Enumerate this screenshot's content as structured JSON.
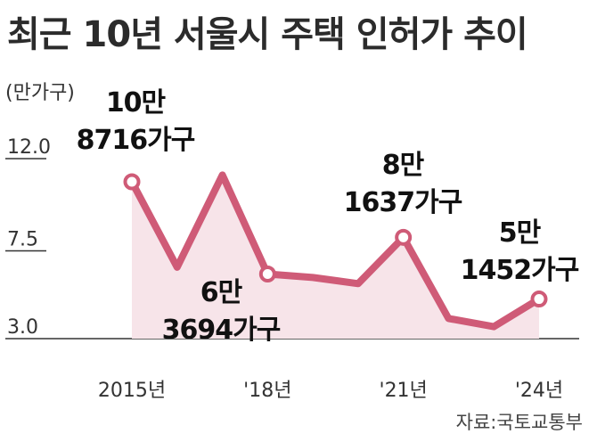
{
  "title": "최근 10년 서울시 주택 인허가 추이",
  "unit": "(만가구)",
  "source": "자료:국토교통부",
  "colors": {
    "line": "#cf5b77",
    "area": "#f7e4e9",
    "axis": "#333333",
    "marker_fill": "#ffffff"
  },
  "chart_data": {
    "type": "area",
    "title": "최근 10년 서울시 주택 인허가 추이",
    "ylabel": "(만가구)",
    "ylim": [
      3.0,
      12.0
    ],
    "yticks": [
      "12.0",
      "7.5",
      "3.0"
    ],
    "ytick_values": [
      12.0,
      7.5,
      3.0
    ],
    "x": [
      2015,
      2016,
      2017,
      2018,
      2019,
      2020,
      2021,
      2022,
      2023,
      2024
    ],
    "xtick_values": [
      2015,
      2018,
      2021,
      2024
    ],
    "xticks": [
      "2015년",
      "'18년",
      "'21년",
      "'24년"
    ],
    "series": [
      {
        "values": [
          10.87,
          6.7,
          11.2,
          6.37,
          6.2,
          5.9,
          8.16,
          4.2,
          3.8,
          5.15
        ]
      }
    ],
    "markers": [
      2015,
      2018,
      2021,
      2024
    ],
    "annotations": [
      {
        "x": 2015,
        "lines": [
          "10만",
          "8716가구"
        ]
      },
      {
        "x": 2018,
        "lines": [
          "6만",
          "3694가구"
        ]
      },
      {
        "x": 2021,
        "lines": [
          "8만",
          "1637가구"
        ]
      },
      {
        "x": 2024,
        "lines": [
          "5만",
          "1452가구"
        ]
      }
    ],
    "grid": false
  }
}
